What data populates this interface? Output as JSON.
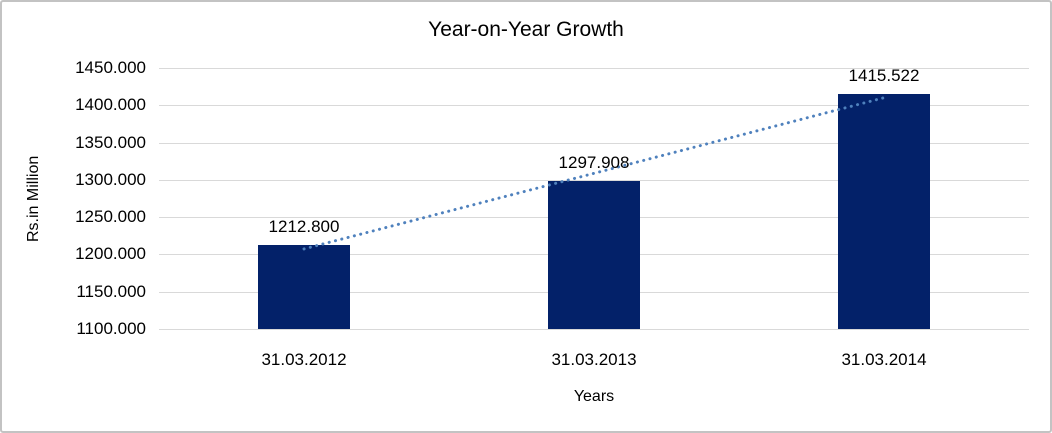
{
  "chart_data": {
    "type": "bar",
    "title": "Year-on-Year Growth",
    "xlabel": "Years",
    "ylabel": "Rs.in Million",
    "categories": [
      "31.03.2012",
      "31.03.2013",
      "31.03.2014"
    ],
    "values": [
      1212.8,
      1297.908,
      1415.522
    ],
    "data_labels": [
      "1212.800",
      "1297.908",
      "1415.522"
    ],
    "ylim": [
      1100,
      1450
    ],
    "y_ticks": [
      {
        "value": 1100,
        "label": "1100.000"
      },
      {
        "value": 1150,
        "label": "1150.000"
      },
      {
        "value": 1200,
        "label": "1200.000"
      },
      {
        "value": 1250,
        "label": "1250.000"
      },
      {
        "value": 1300,
        "label": "1300.000"
      },
      {
        "value": 1350,
        "label": "1350.000"
      },
      {
        "value": 1400,
        "label": "1400.000"
      },
      {
        "value": 1450,
        "label": "1450.000"
      }
    ],
    "grid": true,
    "legend": "none",
    "trendline": {
      "type": "linear",
      "style": "dotted"
    },
    "colors": {
      "bar": "#032169",
      "trendline": "#4f81bd",
      "gridline": "#d9d9d9",
      "text": "#000000"
    }
  }
}
